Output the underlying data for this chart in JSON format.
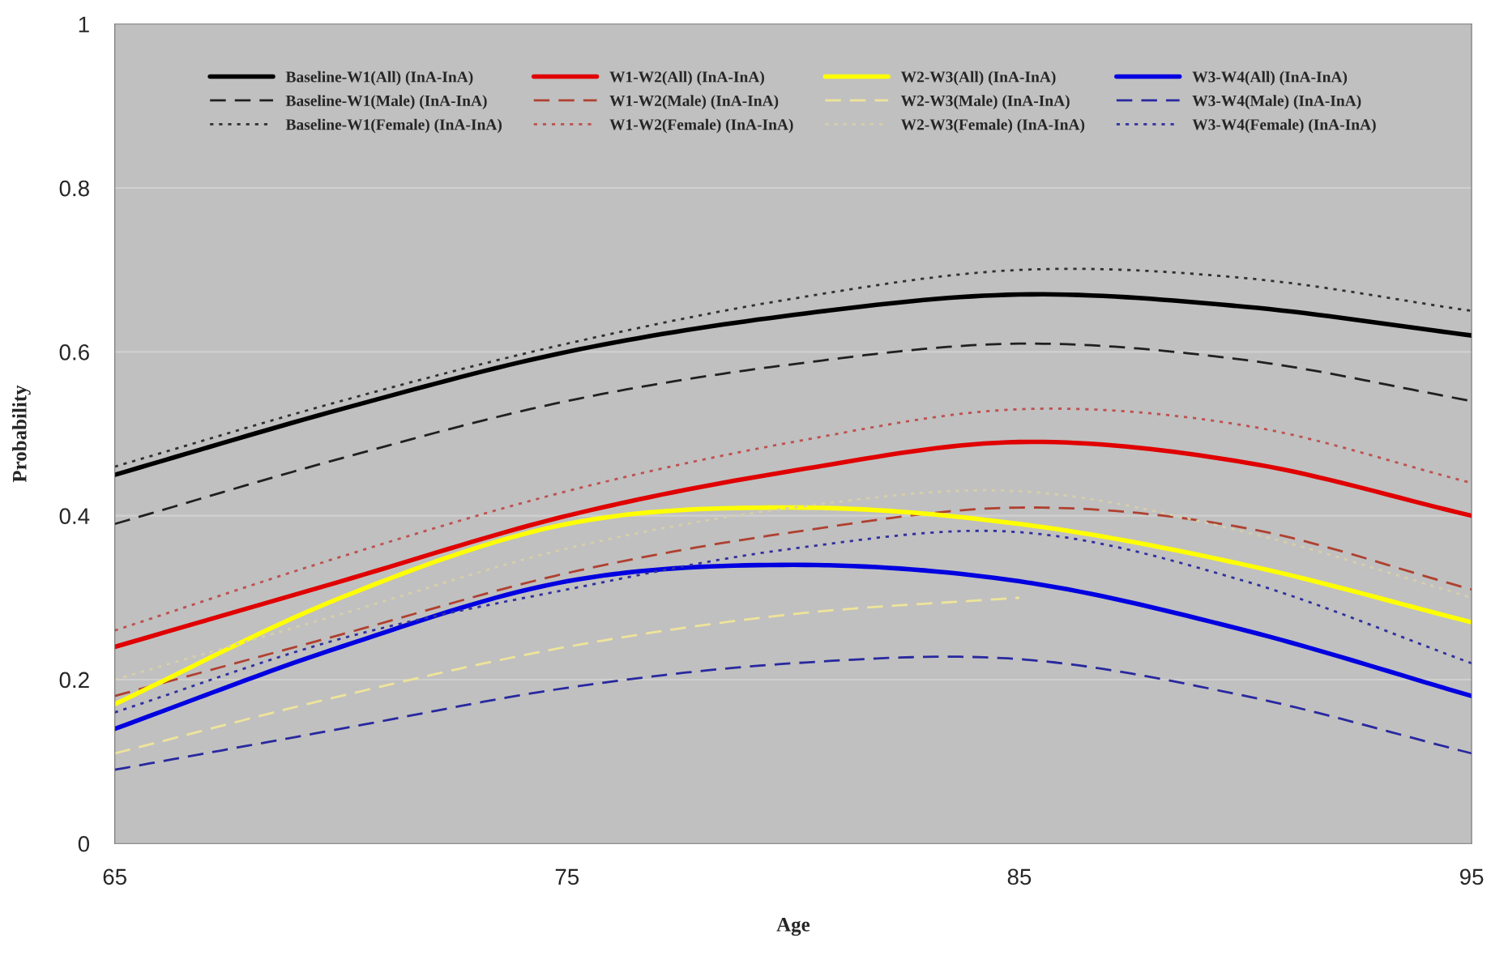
{
  "chart_data": {
    "type": "line",
    "xlabel": "Age",
    "ylabel": "Probability",
    "x": [
      65,
      70,
      75,
      80,
      85,
      90,
      95
    ],
    "xlim": [
      65,
      95
    ],
    "xticks": [
      65,
      75,
      85,
      95
    ],
    "ylim": [
      0,
      1
    ],
    "yticks": [
      0,
      0.2,
      0.4,
      0.6,
      0.8,
      1
    ],
    "grid": "y",
    "legend": "top",
    "marker": "none",
    "series": [
      {
        "name": "Baseline-W1(All) (InA-InA)",
        "color": "#000000",
        "line_style": "solid",
        "values": [
          0.45,
          0.53,
          0.6,
          0.645,
          0.67,
          0.655,
          0.62
        ]
      },
      {
        "name": "Baseline-W1(Male) (InA-InA)",
        "color": "#202020",
        "line_style": "dashed",
        "values": [
          0.39,
          0.47,
          0.54,
          0.585,
          0.61,
          0.59,
          0.54
        ]
      },
      {
        "name": "Baseline-W1(Female) (InA-InA)",
        "color": "#303030",
        "line_style": "dotted",
        "values": [
          0.46,
          0.54,
          0.61,
          0.665,
          0.7,
          0.69,
          0.65
        ]
      },
      {
        "name": "W1-W2(All) (InA-InA)",
        "color": "#e00000",
        "line_style": "solid",
        "values": [
          0.24,
          0.32,
          0.4,
          0.455,
          0.49,
          0.465,
          0.4
        ]
      },
      {
        "name": "W1-W2(Male) (InA-InA)",
        "color": "#b04030",
        "line_style": "dashed",
        "values": [
          0.18,
          0.255,
          0.33,
          0.38,
          0.41,
          0.385,
          0.31
        ]
      },
      {
        "name": "W1-W2(Female) (InA-InA)",
        "color": "#c05050",
        "line_style": "dotted",
        "values": [
          0.26,
          0.35,
          0.43,
          0.49,
          0.53,
          0.51,
          0.44
        ]
      },
      {
        "name": "W2-W3(All) (InA-InA)",
        "color": "#ffff00",
        "line_style": "solid",
        "values": [
          0.17,
          0.3,
          0.39,
          0.41,
          0.39,
          0.34,
          0.27
        ]
      },
      {
        "name": "W2-W3(Male) (InA-InA)",
        "color": "#eee49a",
        "line_style": "dashed",
        "values": [
          0.11,
          0.18,
          0.24,
          0.28,
          0.3,
          null,
          null
        ]
      },
      {
        "name": "W2-W3(Female) (InA-InA)",
        "color": "#d6cfa8",
        "line_style": "dotted",
        "values": [
          0.2,
          0.28,
          0.36,
          0.41,
          0.43,
          0.38,
          0.3
        ]
      },
      {
        "name": "W3-W4(All) (InA-InA)",
        "color": "#0000e0",
        "line_style": "solid",
        "values": [
          0.14,
          0.24,
          0.32,
          0.34,
          0.32,
          0.26,
          0.18
        ]
      },
      {
        "name": "W3-W4(Male) (InA-InA)",
        "color": "#2828a0",
        "line_style": "dashed",
        "values": [
          0.09,
          0.14,
          0.19,
          0.22,
          0.225,
          0.18,
          0.11
        ]
      },
      {
        "name": "W3-W4(Female) (InA-InA)",
        "color": "#3030a0",
        "line_style": "dotted",
        "values": [
          0.16,
          0.25,
          0.31,
          0.36,
          0.38,
          0.32,
          0.22
        ]
      }
    ]
  }
}
